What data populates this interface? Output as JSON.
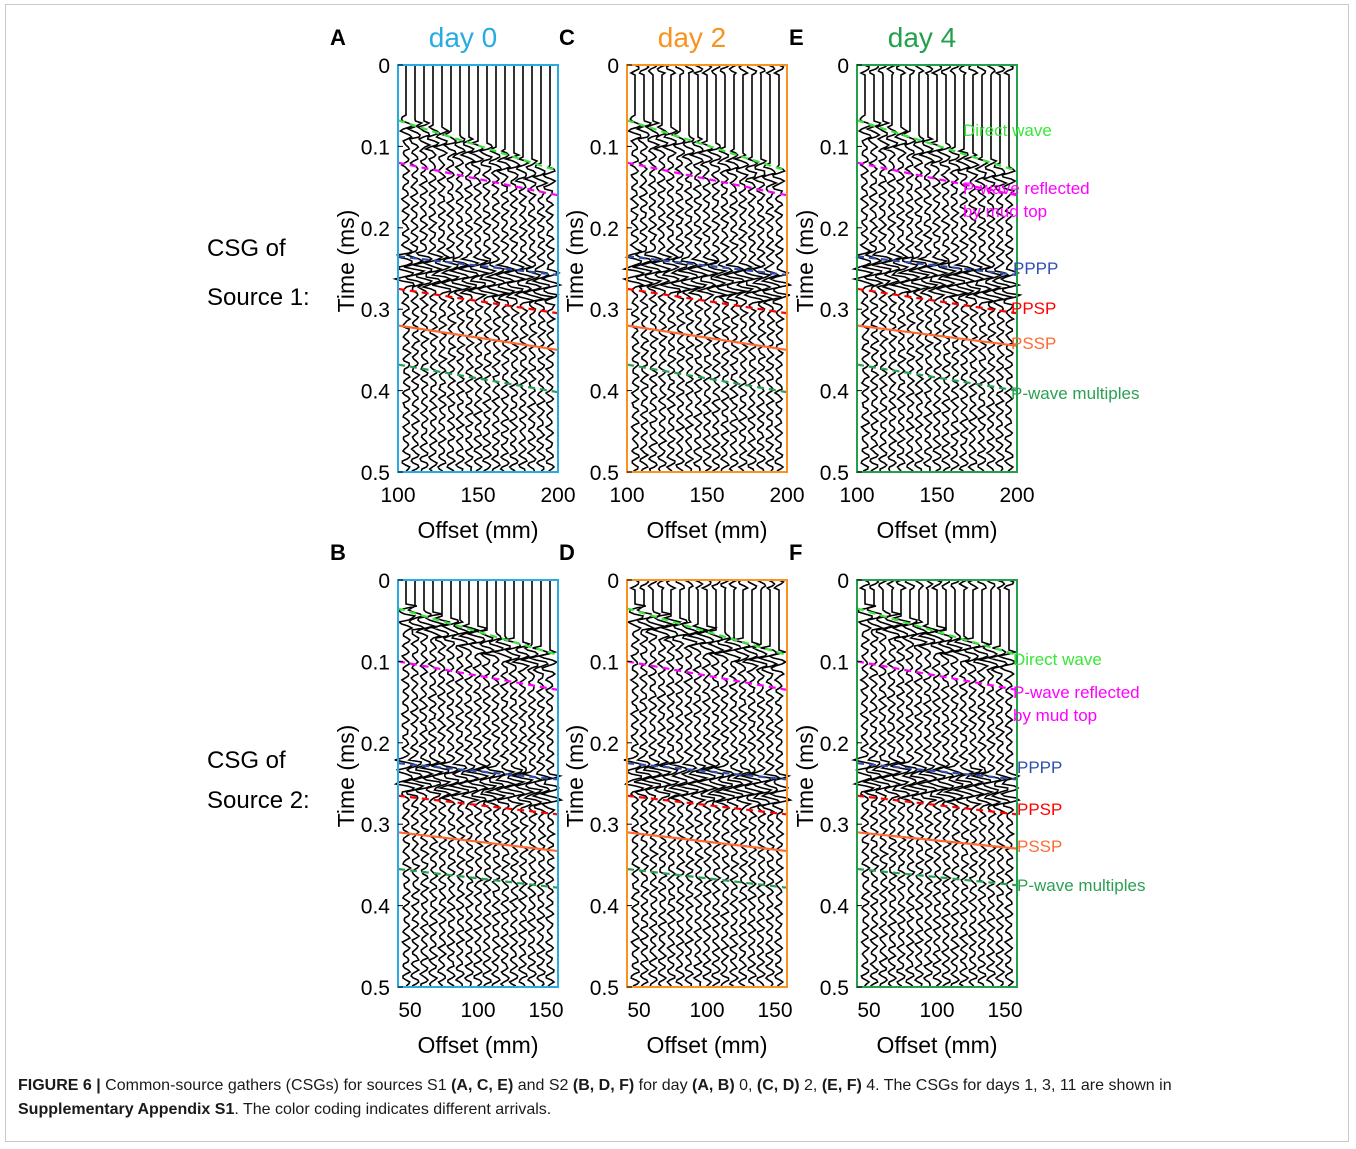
{
  "row_labels": [
    {
      "line1": "CSG of",
      "line2": "Source 1:"
    },
    {
      "line1": "CSG of",
      "line2": "Source 2:"
    }
  ],
  "column_titles": [
    {
      "text": "day 0",
      "color": "#29abe2"
    },
    {
      "text": "day 2",
      "color": "#f7931e"
    },
    {
      "text": "day 4",
      "color": "#22a04b"
    }
  ],
  "arrival_labels": [
    {
      "text": "Direct wave",
      "color": "#39e639"
    },
    {
      "text": "P-wave reflected",
      "text2": "by mud top",
      "color": "#ff00ff"
    },
    {
      "text": "PPPP",
      "color": "#2e4fb0"
    },
    {
      "text": "PPSP",
      "color": "#ff0000"
    },
    {
      "text": "PSSP",
      "color": "#ff6a33"
    },
    {
      "text": "P-wave multiples",
      "color": "#2aa052"
    }
  ],
  "chart_data": [
    {
      "type": "line",
      "panel": "A",
      "day": "day 0",
      "xlabel": "Offset (mm)",
      "ylabel": "Time (ms)",
      "xlim": [
        100,
        200
      ],
      "ylim": [
        0,
        0.5
      ],
      "y_reversed": true,
      "xticks": [
        "100",
        "150",
        "200"
      ],
      "yticks": [
        "0",
        "0.1",
        "0.2",
        "0.3",
        "0.4",
        "0.5"
      ],
      "frame_color": "#29abe2",
      "arrivals": [
        {
          "name": "Direct wave",
          "color": "#39e639",
          "x": [
            100,
            200
          ],
          "y": [
            0.068,
            0.13
          ]
        },
        {
          "name": "P-wave reflected by mud top",
          "color": "#ff00ff",
          "x": [
            100,
            200
          ],
          "y": [
            0.12,
            0.16
          ]
        },
        {
          "name": "PPPP",
          "color": "#2e4fb0",
          "x": [
            100,
            200
          ],
          "y": [
            0.235,
            0.258
          ]
        },
        {
          "name": "PPSP",
          "color": "#ff0000",
          "x": [
            100,
            200
          ],
          "y": [
            0.275,
            0.305
          ]
        },
        {
          "name": "PSSP",
          "color": "#ff6a33",
          "x": [
            100,
            200
          ],
          "y": [
            0.32,
            0.35
          ]
        },
        {
          "name": "P-wave multiples",
          "color": "#2aa052",
          "x": [
            100,
            200
          ],
          "y": [
            0.368,
            0.402
          ]
        }
      ]
    },
    {
      "type": "line",
      "panel": "C",
      "day": "day 2",
      "xlabel": "Offset (mm)",
      "ylabel": "Time (ms)",
      "xlim": [
        100,
        200
      ],
      "ylim": [
        0,
        0.5
      ],
      "y_reversed": true,
      "xticks": [
        "100",
        "150",
        "200"
      ],
      "yticks": [
        "0",
        "0.1",
        "0.2",
        "0.3",
        "0.4",
        "0.5"
      ],
      "frame_color": "#f7931e",
      "arrivals": [
        {
          "name": "Direct wave",
          "color": "#39e639",
          "x": [
            100,
            200
          ],
          "y": [
            0.068,
            0.13
          ]
        },
        {
          "name": "P-wave reflected by mud top",
          "color": "#ff00ff",
          "x": [
            100,
            200
          ],
          "y": [
            0.12,
            0.16
          ]
        },
        {
          "name": "PPPP",
          "color": "#2e4fb0",
          "x": [
            100,
            200
          ],
          "y": [
            0.235,
            0.258
          ]
        },
        {
          "name": "PPSP",
          "color": "#ff0000",
          "x": [
            100,
            200
          ],
          "y": [
            0.275,
            0.305
          ]
        },
        {
          "name": "PSSP",
          "color": "#ff6a33",
          "x": [
            100,
            200
          ],
          "y": [
            0.32,
            0.35
          ]
        },
        {
          "name": "P-wave multiples",
          "color": "#2aa052",
          "x": [
            100,
            200
          ],
          "y": [
            0.368,
            0.402
          ]
        }
      ]
    },
    {
      "type": "line",
      "panel": "E",
      "day": "day 4",
      "xlabel": "Offset (mm)",
      "ylabel": "Time (ms)",
      "xlim": [
        100,
        200
      ],
      "ylim": [
        0,
        0.5
      ],
      "y_reversed": true,
      "xticks": [
        "100",
        "150",
        "200"
      ],
      "yticks": [
        "0",
        "0.1",
        "0.2",
        "0.3",
        "0.4",
        "0.5"
      ],
      "frame_color": "#22a04b",
      "arrivals": [
        {
          "name": "Direct wave",
          "color": "#39e639",
          "x": [
            100,
            200
          ],
          "y": [
            0.068,
            0.13
          ]
        },
        {
          "name": "P-wave reflected by mud top",
          "color": "#ff00ff",
          "x": [
            100,
            200
          ],
          "y": [
            0.12,
            0.16
          ]
        },
        {
          "name": "PPPP",
          "color": "#2e4fb0",
          "x": [
            100,
            200
          ],
          "y": [
            0.235,
            0.258
          ]
        },
        {
          "name": "PPSP",
          "color": "#ff0000",
          "x": [
            100,
            200
          ],
          "y": [
            0.275,
            0.305
          ]
        },
        {
          "name": "PSSP",
          "color": "#ff6a33",
          "x": [
            100,
            200
          ],
          "y": [
            0.32,
            0.345
          ]
        },
        {
          "name": "P-wave multiples",
          "color": "#2aa052",
          "x": [
            100,
            200
          ],
          "y": [
            0.368,
            0.4
          ]
        }
      ]
    },
    {
      "type": "line",
      "panel": "B",
      "day": "day 0",
      "xlabel": "Offset (mm)",
      "ylabel": "Time (ms)",
      "xlim": [
        50,
        150
      ],
      "ylim": [
        0,
        0.5
      ],
      "y_reversed": true,
      "xticks": [
        "50",
        "100",
        "150"
      ],
      "yticks": [
        "0",
        "0.1",
        "0.2",
        "0.3",
        "0.4",
        "0.5"
      ],
      "frame_color": "#29abe2",
      "arrivals": [
        {
          "name": "Direct wave",
          "color": "#39e639",
          "x": [
            50,
            150
          ],
          "y": [
            0.035,
            0.092
          ]
        },
        {
          "name": "P-wave reflected by mud top",
          "color": "#ff00ff",
          "x": [
            50,
            150
          ],
          "y": [
            0.1,
            0.135
          ]
        },
        {
          "name": "PPPP",
          "color": "#2e4fb0",
          "x": [
            50,
            150
          ],
          "y": [
            0.225,
            0.245
          ]
        },
        {
          "name": "PPSP",
          "color": "#ff0000",
          "x": [
            50,
            150
          ],
          "y": [
            0.265,
            0.288
          ]
        },
        {
          "name": "PSSP",
          "color": "#ff6a33",
          "x": [
            50,
            150
          ],
          "y": [
            0.31,
            0.333
          ]
        },
        {
          "name": "P-wave multiples",
          "color": "#2aa052",
          "x": [
            50,
            150
          ],
          "y": [
            0.355,
            0.378
          ]
        }
      ]
    },
    {
      "type": "line",
      "panel": "D",
      "day": "day 2",
      "xlabel": "Offset (mm)",
      "ylabel": "Time (ms)",
      "xlim": [
        50,
        150
      ],
      "ylim": [
        0,
        0.5
      ],
      "y_reversed": true,
      "xticks": [
        "50",
        "100",
        "150"
      ],
      "yticks": [
        "0",
        "0.1",
        "0.2",
        "0.3",
        "0.4",
        "0.5"
      ],
      "frame_color": "#f7931e",
      "arrivals": [
        {
          "name": "Direct wave",
          "color": "#39e639",
          "x": [
            50,
            150
          ],
          "y": [
            0.035,
            0.092
          ]
        },
        {
          "name": "P-wave reflected by mud top",
          "color": "#ff00ff",
          "x": [
            50,
            150
          ],
          "y": [
            0.1,
            0.135
          ]
        },
        {
          "name": "PPPP",
          "color": "#2e4fb0",
          "x": [
            50,
            150
          ],
          "y": [
            0.225,
            0.245
          ]
        },
        {
          "name": "PPSP",
          "color": "#ff0000",
          "x": [
            50,
            150
          ],
          "y": [
            0.265,
            0.288
          ]
        },
        {
          "name": "PSSP",
          "color": "#ff6a33",
          "x": [
            50,
            150
          ],
          "y": [
            0.31,
            0.333
          ]
        },
        {
          "name": "P-wave multiples",
          "color": "#2aa052",
          "x": [
            50,
            150
          ],
          "y": [
            0.355,
            0.378
          ]
        }
      ]
    },
    {
      "type": "line",
      "panel": "F",
      "day": "day 4",
      "xlabel": "Offset (mm)",
      "ylabel": "Time (ms)",
      "xlim": [
        50,
        150
      ],
      "ylim": [
        0,
        0.5
      ],
      "y_reversed": true,
      "xticks": [
        "50",
        "100",
        "150"
      ],
      "yticks": [
        "0",
        "0.1",
        "0.2",
        "0.3",
        "0.4",
        "0.5"
      ],
      "frame_color": "#22a04b",
      "arrivals": [
        {
          "name": "Direct wave",
          "color": "#39e639",
          "x": [
            50,
            150
          ],
          "y": [
            0.035,
            0.092
          ]
        },
        {
          "name": "P-wave reflected by mud top",
          "color": "#ff00ff",
          "x": [
            50,
            150
          ],
          "y": [
            0.1,
            0.135
          ]
        },
        {
          "name": "PPPP",
          "color": "#2e4fb0",
          "x": [
            50,
            150
          ],
          "y": [
            0.225,
            0.245
          ]
        },
        {
          "name": "PPSP",
          "color": "#ff0000",
          "x": [
            50,
            150
          ],
          "y": [
            0.265,
            0.288
          ]
        },
        {
          "name": "PSSP",
          "color": "#ff6a33",
          "x": [
            50,
            150
          ],
          "y": [
            0.31,
            0.33
          ]
        },
        {
          "name": "P-wave multiples",
          "color": "#2aa052",
          "x": [
            50,
            150
          ],
          "y": [
            0.355,
            0.375
          ]
        }
      ]
    }
  ],
  "caption": {
    "lead": "FIGURE 6 |",
    "t1": " Common-source gathers (CSGs) for sources S1 ",
    "b1": "(A, C, E)",
    "t2": " and S2 ",
    "b2": "(B, D, F)",
    "t3": " for day ",
    "b3": "(A, B)",
    "t4": " 0, ",
    "b4": "(C, D)",
    "t5": " 2, ",
    "b5": "(E, F)",
    "t6": " 4. The CSGs for days 1, 3, 11 are shown in",
    "b6": "Supplementary Appendix S1",
    "t7": ". The color coding indicates different arrivals."
  }
}
